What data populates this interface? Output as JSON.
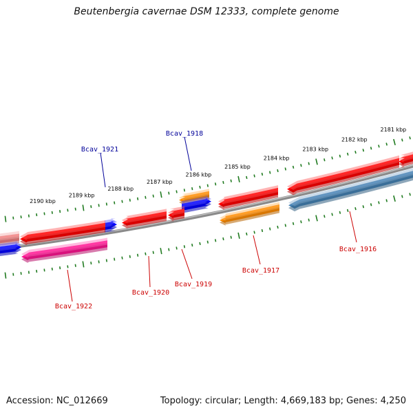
{
  "title": "Beutenbergia cavernae DSM 12333, complete genome",
  "footer": {
    "accession": "Accession: NC_012669",
    "summary": "Topology: circular; Length: 4,669,183 bp; Genes: 4,250"
  },
  "colors": {
    "backbone": "#8a8a8a",
    "tick": "#1f7a1f",
    "tick_label": "#000000",
    "label_red": "#cc0000",
    "label_blue": "#000099"
  },
  "ticks": [
    {
      "label": "2181 kbp"
    },
    {
      "label": "2182 kbp"
    },
    {
      "label": "2183 kbp"
    },
    {
      "label": "2184 kbp"
    },
    {
      "label": "2185 kbp"
    },
    {
      "label": "2186 kbp"
    },
    {
      "label": "2187 kbp"
    },
    {
      "label": "2188 kbp"
    },
    {
      "label": "2189 kbp"
    },
    {
      "label": "2190 kbp"
    }
  ],
  "genes": [
    {
      "label": "Bcav_1916",
      "strand": "-",
      "color": "#ff0000"
    },
    {
      "label": "Bcav_1917",
      "strand": "-",
      "color": "#ff0000"
    },
    {
      "label": "Bcav_1918",
      "strand": "+",
      "color": "#0000ff"
    },
    {
      "label": "Bcav_1919",
      "strand": "-",
      "color": "#ff0000"
    },
    {
      "label": "Bcav_1920",
      "strand": "-",
      "color": "#ff0000"
    },
    {
      "label": "Bcav_1921",
      "strand": "+",
      "color": "#0000ff"
    },
    {
      "label": "Bcav_1922",
      "strand": "-",
      "color": "#ff0000"
    }
  ],
  "features": [
    {
      "type": "gene",
      "color": "#ff0000"
    },
    {
      "type": "CDS",
      "color": "#4682b4"
    },
    {
      "type": "CDS",
      "color": "#ff8c00"
    },
    {
      "type": "CDS",
      "color": "#ff8c00"
    },
    {
      "type": "CDS",
      "color": "#ff1493"
    },
    {
      "type": "gene",
      "color": "#f08080"
    },
    {
      "type": "gene",
      "color": "#0000ff"
    }
  ]
}
